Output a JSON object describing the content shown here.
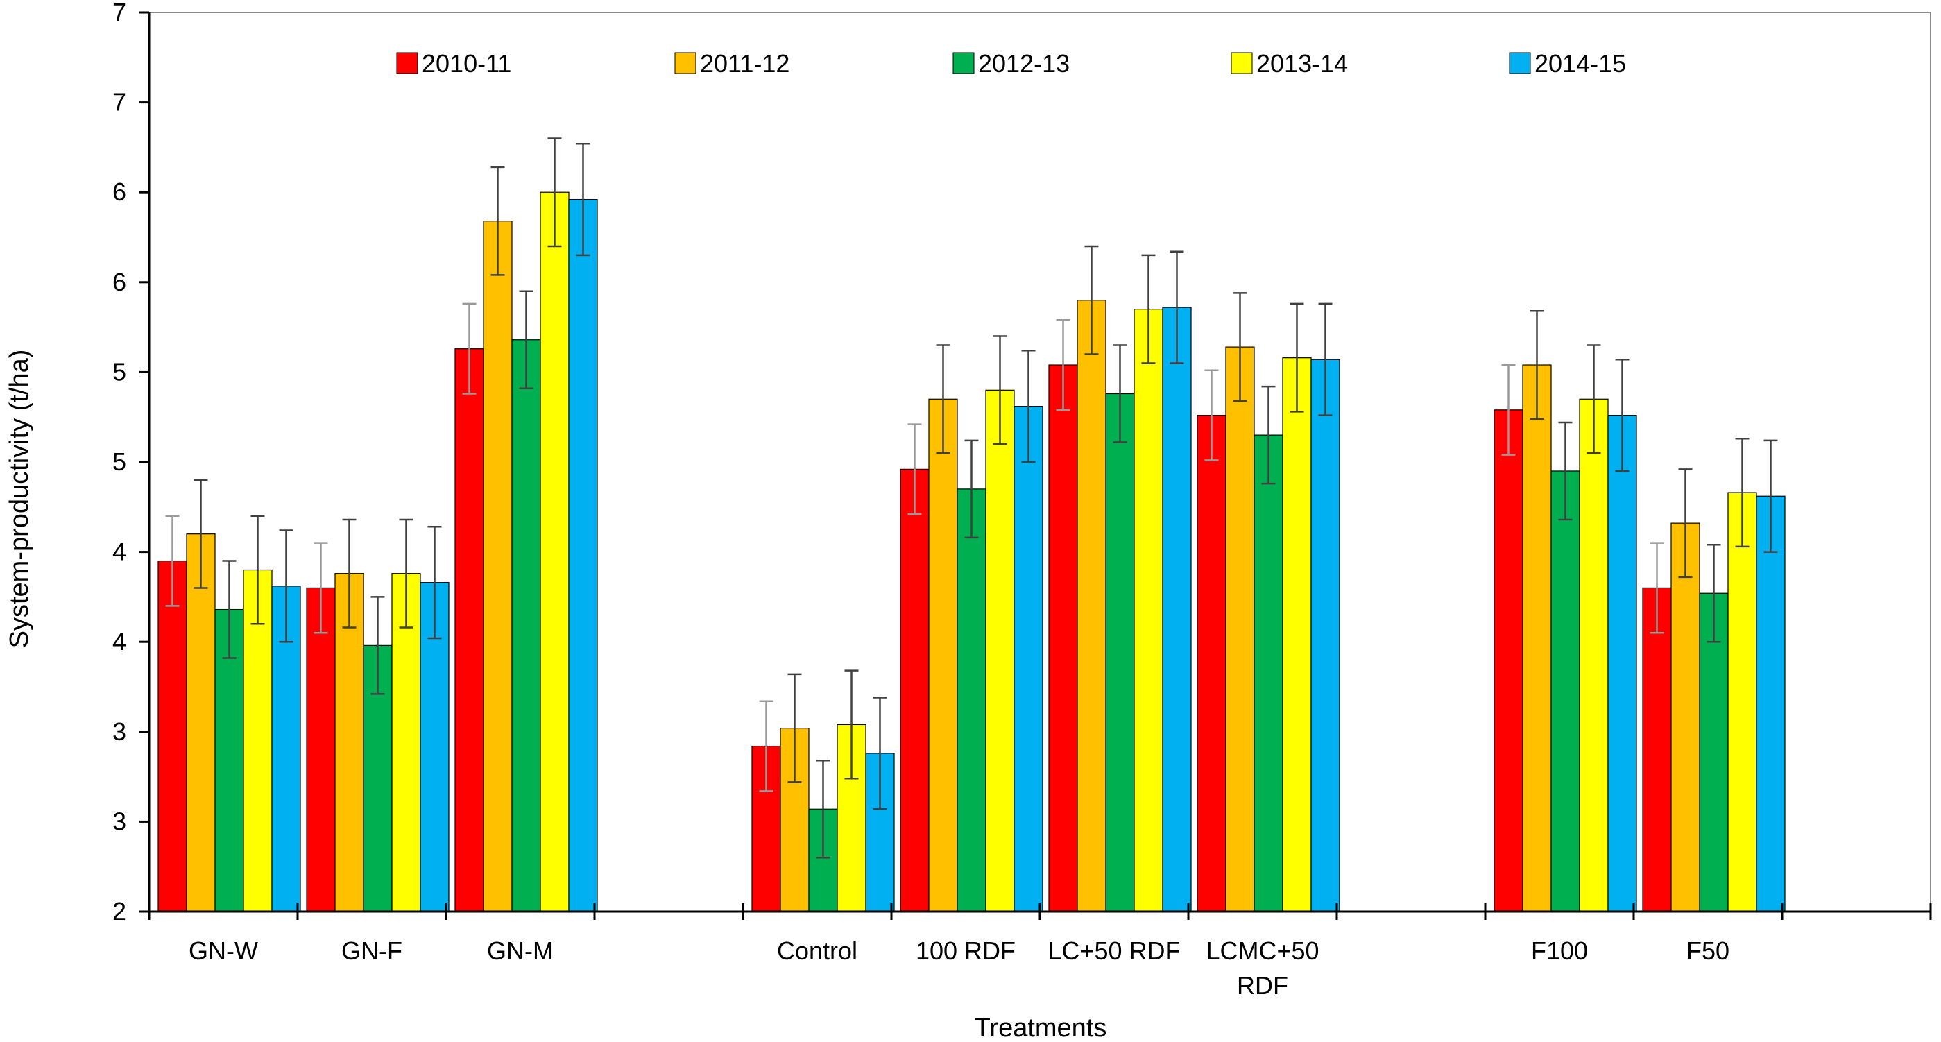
{
  "chart_data": {
    "type": "bar",
    "title": "",
    "xlabel": "Treatments",
    "ylabel": "System-productivity (t/ha)",
    "ylim": [
      2,
      7
    ],
    "y_ticks": [
      2,
      2.5,
      3,
      3.5,
      4,
      4.5,
      5,
      5.5,
      6,
      6.5,
      7
    ],
    "y_tick_labels": [
      "2",
      "3",
      "3",
      "4",
      "4",
      "5",
      "5",
      "6",
      "6",
      "7",
      "7"
    ],
    "slots": [
      "GN-W",
      "GN-F",
      "GN-M",
      "",
      "Control",
      "100 RDF",
      "LC+50 RDF",
      "LCMC+50 RDF",
      "",
      "F100",
      "F50"
    ],
    "category_label_lines": [
      [
        "GN-W"
      ],
      [
        "GN-F"
      ],
      [
        "GN-M"
      ],
      [],
      [
        "Control"
      ],
      [
        "100 RDF"
      ],
      [
        "LC+50 RDF"
      ],
      [
        "LCMC+50",
        "RDF"
      ],
      [],
      [
        "F100"
      ],
      [
        "F50"
      ]
    ],
    "grid": false,
    "legend_position": "top",
    "series": [
      {
        "name": "2010-11",
        "color": "#FF0000",
        "values": [
          3.95,
          3.8,
          5.13,
          null,
          2.92,
          4.46,
          5.04,
          4.76,
          null,
          4.79,
          3.8
        ],
        "errors": [
          0.25,
          0.25,
          0.25,
          null,
          0.25,
          0.25,
          0.25,
          0.25,
          null,
          0.25,
          0.25
        ]
      },
      {
        "name": "2011-12",
        "color": "#FFC000",
        "values": [
          4.1,
          3.88,
          5.84,
          null,
          3.02,
          4.85,
          5.4,
          5.14,
          null,
          5.04,
          4.16
        ],
        "errors": [
          0.3,
          0.3,
          0.3,
          null,
          0.3,
          0.3,
          0.3,
          0.3,
          null,
          0.3,
          0.3
        ]
      },
      {
        "name": "2012-13",
        "color": "#00B050",
        "values": [
          3.68,
          3.48,
          5.18,
          null,
          2.57,
          4.35,
          4.88,
          4.65,
          null,
          4.45,
          3.77
        ],
        "errors": [
          0.27,
          0.27,
          0.27,
          null,
          0.27,
          0.27,
          0.27,
          0.27,
          null,
          0.27,
          0.27
        ]
      },
      {
        "name": "2013-14",
        "color": "#FFFF00",
        "values": [
          3.9,
          3.88,
          6.0,
          null,
          3.04,
          4.9,
          5.35,
          5.08,
          null,
          4.85,
          4.33
        ],
        "errors": [
          0.3,
          0.3,
          0.3,
          null,
          0.3,
          0.3,
          0.3,
          0.3,
          null,
          0.3,
          0.3
        ]
      },
      {
        "name": "2014-15",
        "color": "#00B0F0",
        "values": [
          3.81,
          3.83,
          5.96,
          null,
          2.88,
          4.81,
          5.36,
          5.07,
          null,
          4.76,
          4.31
        ],
        "errors": [
          0.31,
          0.31,
          0.31,
          null,
          0.31,
          0.31,
          0.31,
          0.31,
          null,
          0.31,
          0.31
        ]
      }
    ]
  }
}
